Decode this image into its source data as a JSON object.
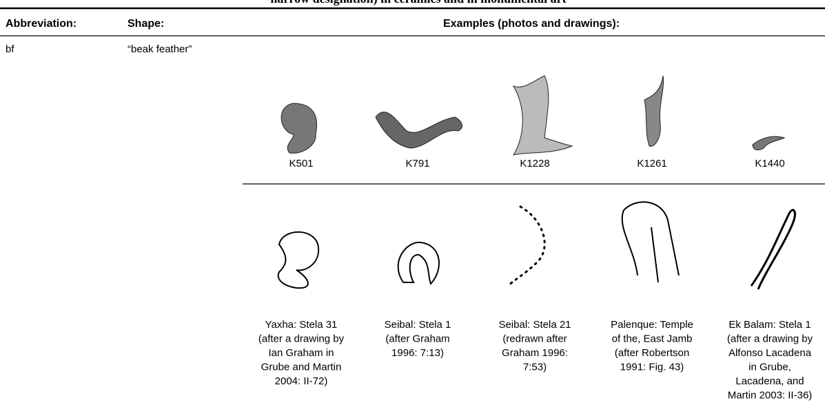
{
  "title": "narrow designation) in ceramics and in monumental art",
  "table": {
    "header": [
      "Abbreviation:",
      "Shape:",
      "Examples (photos and drawings):"
    ],
    "rows": [
      {
        "abbreviation": "bf",
        "shape": "“beak feather”",
        "photos": [
          "K501",
          "K791",
          "K1228",
          "K1261",
          "K1440"
        ],
        "drawings": [
          [
            "Yaxha: Stela 31",
            "(after a drawing by",
            "Ian Graham in",
            "Grube and Martin",
            "2004: II-72)"
          ],
          [
            "Seibal: Stela 1",
            "(after Graham",
            "1996: 7:13)"
          ],
          [
            "Seibal: Stela 21",
            "(redrawn after",
            "Graham 1996:",
            "7:53)"
          ],
          [
            "Palenque: Temple",
            "of the, East Jamb",
            "(after Robertson",
            "1991: Fig. 43)"
          ],
          [
            "Ek Balam: Stela 1",
            "(after a drawing by",
            "Alfonso Lacadena",
            "in Grube,",
            "Lacadena, and",
            "Martin 2003: II-36)"
          ]
        ]
      }
    ]
  }
}
